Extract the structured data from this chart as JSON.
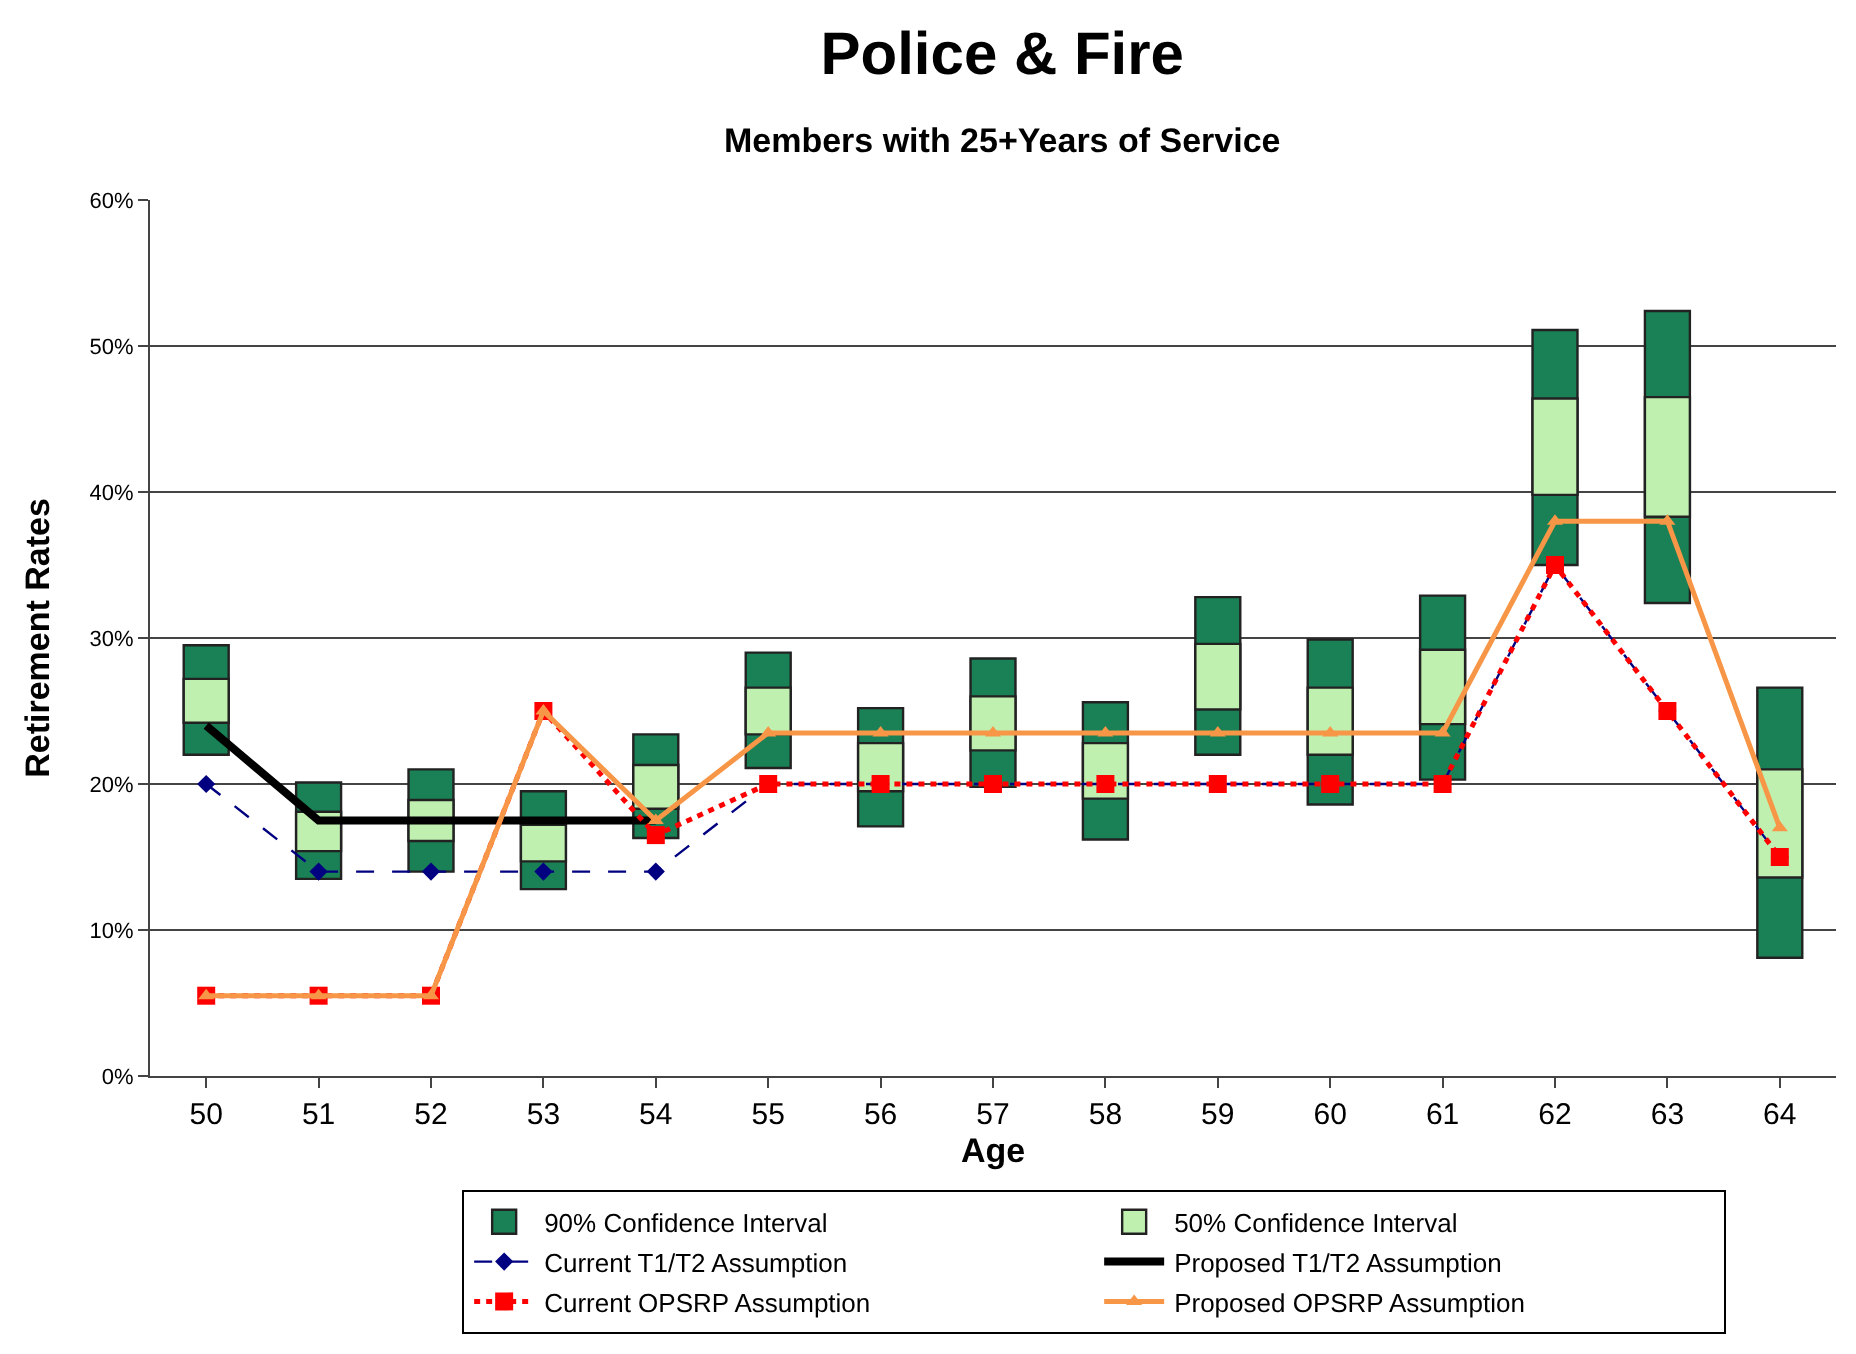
{
  "chart_data": {
    "type": "bar",
    "title": "Police & Fire",
    "subtitle": "Members with 25+Years of Service",
    "xlabel": "Age",
    "ylabel": "Retirement Rates",
    "categories": [
      "50",
      "51",
      "52",
      "53",
      "54",
      "55",
      "56",
      "57",
      "58",
      "59",
      "60",
      "61",
      "62",
      "63",
      "64"
    ],
    "series": [
      {
        "name": "90% Confidence Interval",
        "color": "#1a8055",
        "base": [
          22.0,
          13.5,
          14.0,
          12.8,
          16.3,
          21.1,
          17.1,
          19.8,
          16.2,
          22.0,
          18.6,
          20.3,
          35.0,
          32.4,
          8.1
        ],
        "values": [
          7.5,
          6.6,
          7.0,
          6.7,
          7.1,
          7.9,
          8.1,
          8.8,
          9.4,
          10.8,
          11.3,
          12.6,
          16.1,
          20.0,
          18.5
        ]
      },
      {
        "name": "50% Confidence Interval",
        "color": "#c0f0b0",
        "base": [
          24.2,
          15.4,
          16.1,
          14.7,
          18.3,
          23.4,
          19.5,
          22.3,
          19.0,
          25.1,
          22.0,
          24.1,
          39.8,
          38.3,
          13.6
        ],
        "values": [
          3.0,
          2.7,
          2.8,
          2.5,
          3.0,
          3.2,
          3.3,
          3.7,
          3.8,
          4.5,
          4.6,
          5.1,
          6.6,
          8.2,
          7.4
        ]
      },
      {
        "type": "line",
        "name": "Current T1/T2 Assumption",
        "color": "#000080",
        "marker": "diamond",
        "line_style": "dashed",
        "values": [
          20,
          14,
          14,
          14,
          14,
          20,
          20,
          20,
          20,
          20,
          20,
          20,
          35,
          25,
          15
        ]
      },
      {
        "type": "line",
        "name": "Proposed T1/T2 Assumption",
        "color": "#000000",
        "marker": "none",
        "line_style": "solid",
        "values": [
          24.0,
          17.5,
          17.5,
          17.5,
          17.5,
          null,
          null,
          null,
          null,
          null,
          null,
          null,
          null,
          null,
          null
        ]
      },
      {
        "type": "line",
        "name": "Current OPSRP Assumption",
        "color": "#ff0000",
        "marker": "square",
        "line_style": "dotted",
        "values": [
          5.5,
          5.5,
          5.5,
          25.0,
          16.5,
          20,
          20,
          20,
          20,
          20,
          20,
          20,
          35,
          25,
          15
        ]
      },
      {
        "type": "line",
        "name": "Proposed OPSRP Assumption",
        "color": "#f79646",
        "marker": "triangle",
        "line_style": "solid",
        "values": [
          5.5,
          5.5,
          5.5,
          25.0,
          17.5,
          23.5,
          23.5,
          23.5,
          23.5,
          23.5,
          23.5,
          23.5,
          38,
          38,
          17
        ]
      }
    ],
    "ylim": [
      0,
      60
    ],
    "yticks": [
      {
        "value": 0,
        "label": "0%"
      },
      {
        "value": 10,
        "label": "10%"
      },
      {
        "value": 20,
        "label": "20%"
      },
      {
        "value": 30,
        "label": "30%"
      },
      {
        "value": 40,
        "label": "40%"
      },
      {
        "value": 50,
        "label": "50%"
      },
      {
        "value": 60,
        "label": "60%"
      }
    ],
    "grid": "y",
    "legend": "bottom"
  }
}
